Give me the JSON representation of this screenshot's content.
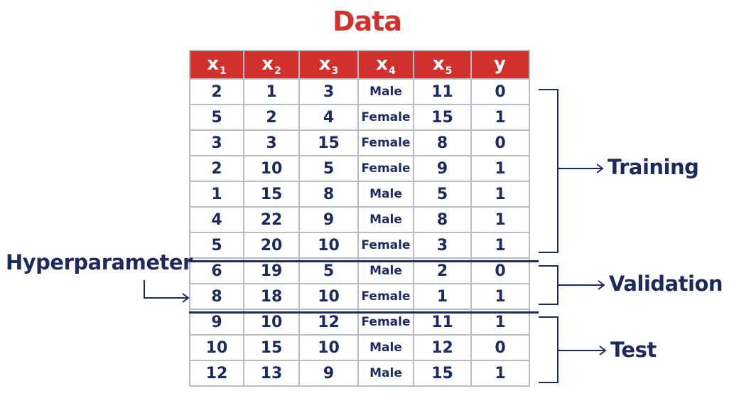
{
  "title": "Data",
  "table": {
    "headers": [
      {
        "base": "x",
        "sub": "1"
      },
      {
        "base": "x",
        "sub": "2"
      },
      {
        "base": "x",
        "sub": "3"
      },
      {
        "base": "x",
        "sub": "4"
      },
      {
        "base": "x",
        "sub": "5"
      },
      {
        "base": "y",
        "sub": ""
      }
    ],
    "rows": [
      [
        "2",
        "1",
        "3",
        "Male",
        "11",
        "0"
      ],
      [
        "5",
        "2",
        "4",
        "Female",
        "15",
        "1"
      ],
      [
        "3",
        "3",
        "15",
        "Female",
        "8",
        "0"
      ],
      [
        "2",
        "10",
        "5",
        "Female",
        "9",
        "1"
      ],
      [
        "1",
        "15",
        "8",
        "Male",
        "5",
        "1"
      ],
      [
        "4",
        "22",
        "9",
        "Male",
        "8",
        "1"
      ],
      [
        "5",
        "20",
        "10",
        "Female",
        "3",
        "1"
      ],
      [
        "6",
        "19",
        "5",
        "Male",
        "2",
        "0"
      ],
      [
        "8",
        "18",
        "10",
        "Female",
        "1",
        "1"
      ],
      [
        "9",
        "10",
        "12",
        "Female",
        "11",
        "1"
      ],
      [
        "10",
        "15",
        "10",
        "Male",
        "12",
        "0"
      ],
      [
        "12",
        "13",
        "9",
        "Male",
        "15",
        "1"
      ]
    ]
  },
  "splits": {
    "training": "Training",
    "validation": "Validation",
    "test": "Test"
  },
  "hyperparameter_label": "Hyperparameter",
  "colors": {
    "header_bg": "#d0312d",
    "title": "#d0312d",
    "text": "#1c2a5e",
    "grid": "#b8bcc8"
  }
}
